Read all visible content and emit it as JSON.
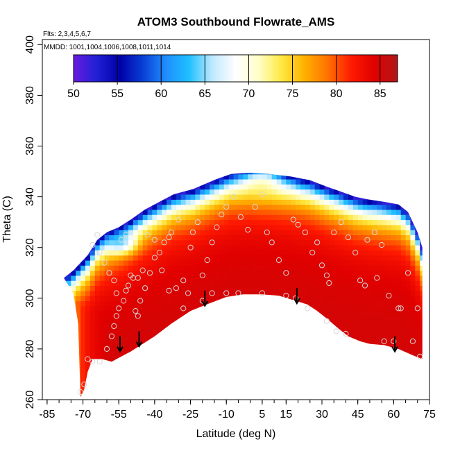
{
  "chart_data": {
    "type": "heatmap",
    "title": "ATOM3 Southbound Flowrate_AMS",
    "subtitle_flights": "Flts: 2,3,4,5,6,7",
    "subtitle_dates": "MMDD: 1001,1004,1006,1008,1011,1014",
    "xlabel": "Latitude (deg N)",
    "ylabel": "Theta (C)",
    "xlim": [
      -87,
      75
    ],
    "ylim": [
      260,
      402
    ],
    "x_ticks": [
      -85,
      -70,
      -55,
      -40,
      -25,
      -10,
      5,
      15,
      30,
      45,
      60,
      75
    ],
    "x_tick_labels": [
      "-85",
      "-70",
      "-55",
      "-40",
      "-25",
      "-10",
      "5",
      "15",
      "30",
      "45",
      "60",
      "75"
    ],
    "y_ticks": [
      260,
      280,
      300,
      320,
      340,
      360,
      380,
      400
    ],
    "y_tick_labels": [
      "260",
      "280",
      "300",
      "320",
      "340",
      "360",
      "380",
      "400"
    ],
    "colorbar": {
      "min": 50,
      "max": 87,
      "ticks": [
        50,
        55,
        60,
        65,
        70,
        75,
        80,
        85
      ],
      "tick_labels": [
        "50",
        "55",
        "60",
        "65",
        "70",
        "75",
        "80",
        "85"
      ],
      "colors": [
        "#6a1be0",
        "#2020d6",
        "#0000a8",
        "#0a3fd6",
        "#1f8fff",
        "#1fc0ff",
        "#bfe9ff",
        "#ffffff",
        "#ffffc8",
        "#ffe840",
        "#ffb000",
        "#ff7000",
        "#ff1a00",
        "#e00000",
        "#b01818"
      ]
    },
    "domain": {
      "lower_boundary": [
        [
          -71,
          261
        ],
        [
          -69.5,
          264
        ],
        [
          -68,
          271
        ],
        [
          -66,
          276
        ],
        [
          -62,
          276
        ],
        [
          -58,
          275
        ],
        [
          -54,
          277
        ],
        [
          -50,
          279
        ],
        [
          -45,
          282
        ],
        [
          -40,
          285
        ],
        [
          -33,
          290
        ],
        [
          -25,
          295
        ],
        [
          -17,
          298
        ],
        [
          -10,
          300.5
        ],
        [
          -3,
          301.5
        ],
        [
          5,
          301.5
        ],
        [
          12,
          301
        ],
        [
          19,
          299
        ],
        [
          24,
          297.5
        ],
        [
          28,
          295
        ],
        [
          32,
          292
        ],
        [
          37,
          288
        ],
        [
          41,
          285
        ],
        [
          46,
          283
        ],
        [
          50,
          282
        ],
        [
          56,
          281.5
        ],
        [
          62,
          280
        ],
        [
          68,
          277.5
        ],
        [
          72,
          276
        ]
      ],
      "upper_boundary": [
        [
          72,
          320
        ],
        [
          70,
          326
        ],
        [
          68,
          330
        ],
        [
          66,
          334
        ],
        [
          62,
          337
        ],
        [
          56,
          338
        ],
        [
          49,
          339
        ],
        [
          44,
          340
        ],
        [
          38,
          342
        ],
        [
          32,
          344
        ],
        [
          25,
          346.5
        ],
        [
          17,
          348
        ],
        [
          8,
          349
        ],
        [
          0,
          349.5
        ],
        [
          -8,
          349
        ],
        [
          -14,
          347
        ],
        [
          -19,
          345
        ],
        [
          -24,
          343
        ],
        [
          -32,
          341
        ],
        [
          -38,
          338
        ],
        [
          -44,
          335
        ],
        [
          -50,
          331
        ],
        [
          -55,
          328
        ],
        [
          -60,
          326
        ],
        [
          -64,
          323
        ],
        [
          -68,
          317
        ],
        [
          -74,
          311
        ],
        [
          -78,
          308
        ]
      ],
      "left_edge": [
        [
          -78,
          308
        ],
        [
          -74,
          302
        ],
        [
          -72,
          290
        ],
        [
          -71.5,
          275
        ],
        [
          -71,
          261
        ]
      ],
      "right_edge": [
        [
          72,
          276
        ],
        [
          72,
          320
        ]
      ]
    },
    "field_model": {
      "core_value": 85,
      "edge_value": 52,
      "edge_falloff_theta": 18,
      "peak_center": [
        5,
        346
      ],
      "peak_value": 76,
      "lobe_center": [
        -54,
        322
      ],
      "lobe_value": 62
    },
    "observations": [
      [
        -71,
        263
      ],
      [
        -69.5,
        266
      ],
      [
        -68,
        276
      ],
      [
        -66,
        275
      ],
      [
        -63,
        275
      ],
      [
        -60,
        280
      ],
      [
        -58,
        285
      ],
      [
        -57,
        289
      ],
      [
        -56,
        293
      ],
      [
        -55,
        296
      ],
      [
        -53,
        299
      ],
      [
        -52,
        303
      ],
      [
        -51,
        305
      ],
      [
        -49,
        308
      ],
      [
        -48,
        295
      ],
      [
        -47,
        293
      ],
      [
        -46,
        299
      ],
      [
        -44,
        304
      ],
      [
        -42,
        310
      ],
      [
        -40,
        316
      ],
      [
        -38,
        318
      ],
      [
        -36,
        322
      ],
      [
        -34,
        324
      ],
      [
        -33,
        326
      ],
      [
        -30,
        331
      ],
      [
        -28,
        307
      ],
      [
        -25,
        320
      ],
      [
        -24,
        326
      ],
      [
        -22,
        330
      ],
      [
        -20,
        309
      ],
      [
        -18,
        315
      ],
      [
        -16,
        322
      ],
      [
        -14,
        328
      ],
      [
        -12,
        333
      ],
      [
        -10,
        336
      ],
      [
        -7,
        340
      ],
      [
        -4,
        332
      ],
      [
        -1,
        327
      ],
      [
        2,
        336
      ],
      [
        5,
        341
      ],
      [
        7,
        326
      ],
      [
        9,
        322
      ],
      [
        12,
        315
      ],
      [
        15,
        310
      ],
      [
        18,
        331
      ],
      [
        20,
        329
      ],
      [
        23,
        326
      ],
      [
        26,
        318
      ],
      [
        28,
        322
      ],
      [
        30,
        313
      ],
      [
        32,
        309
      ],
      [
        33,
        306
      ],
      [
        35,
        326
      ],
      [
        38,
        330
      ],
      [
        41,
        324
      ],
      [
        44,
        318
      ],
      [
        46,
        307
      ],
      [
        49,
        323
      ],
      [
        52,
        326
      ],
      [
        55,
        321
      ],
      [
        58,
        301
      ],
      [
        60,
        283
      ],
      [
        63,
        296
      ],
      [
        66,
        310
      ],
      [
        -66,
        321
      ],
      [
        -64,
        325
      ],
      [
        -63,
        318
      ],
      [
        -61,
        314
      ],
      [
        -59,
        310
      ],
      [
        -57,
        307
      ],
      [
        -56,
        302
      ],
      [
        -54,
        323
      ],
      [
        -52,
        325
      ],
      [
        -50,
        309
      ],
      [
        -47,
        308
      ],
      [
        -45,
        311
      ],
      [
        -43,
        325
      ],
      [
        -40,
        323
      ],
      [
        -37,
        311
      ],
      [
        -34,
        303
      ],
      [
        -31,
        304
      ],
      [
        -28,
        296
      ],
      [
        -26,
        302
      ],
      [
        -20,
        299
      ],
      [
        -16,
        302
      ],
      [
        -10,
        302
      ],
      [
        -5,
        302
      ],
      [
        5,
        302
      ],
      [
        15,
        301
      ],
      [
        19,
        300
      ],
      [
        24,
        296
      ],
      [
        32,
        291
      ],
      [
        36,
        287
      ],
      [
        40,
        286
      ],
      [
        48,
        305
      ],
      [
        53,
        308
      ],
      [
        56,
        283
      ],
      [
        62,
        296
      ],
      [
        68,
        283
      ],
      [
        70,
        296
      ],
      [
        71,
        277
      ]
    ],
    "arrows": [
      [
        -54.5,
        285
      ],
      [
        -46.5,
        287
      ],
      [
        -19,
        303
      ],
      [
        19.5,
        304
      ],
      [
        60.5,
        285
      ]
    ]
  }
}
